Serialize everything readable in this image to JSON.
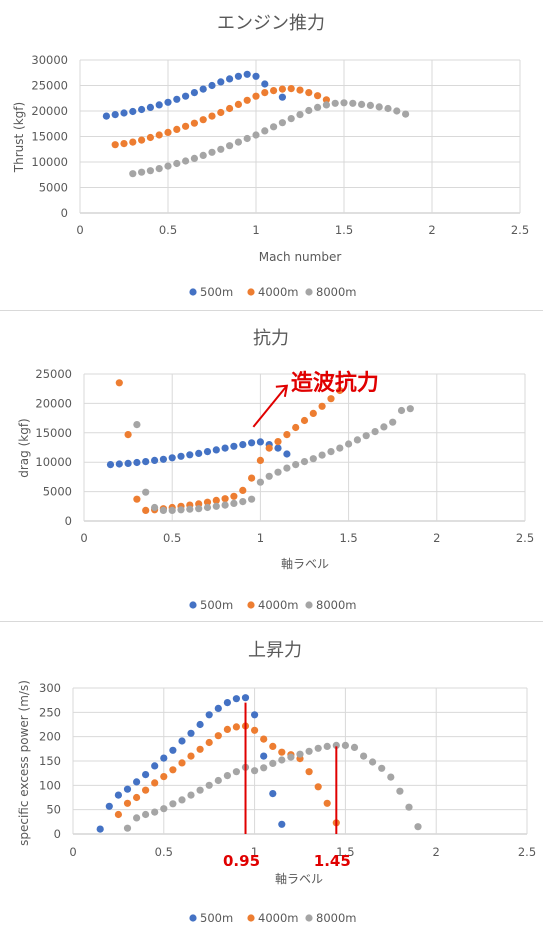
{
  "colors": {
    "500m": "#4472c4",
    "4000m": "#ed7d31",
    "8000m": "#a5a5a5",
    "annotation": "#e00000"
  },
  "chart_data": [
    {
      "type": "scatter",
      "title": "エンジン推力",
      "xlabel": "Mach number",
      "ylabel": "Thrust (kgf)",
      "xlim": [
        0,
        2.5
      ],
      "ylim": [
        0,
        30000
      ],
      "xticks": [
        0,
        0.5,
        1,
        1.5,
        2,
        2.5
      ],
      "yticks": [
        0,
        5000,
        10000,
        15000,
        20000,
        25000,
        30000
      ],
      "xtick_labels": [
        "0",
        "0.5",
        "1",
        "1.5",
        "2",
        "2.5"
      ],
      "ytick_labels": [
        "0",
        "5000",
        "10000",
        "15000",
        "20000",
        "25000",
        "30000"
      ],
      "legend_position": "bottom",
      "series": [
        {
          "name": "500m",
          "color": "#4472c4",
          "points": [
            [
              0.15,
              19000
            ],
            [
              0.2,
              19300
            ],
            [
              0.25,
              19600
            ],
            [
              0.3,
              19900
            ],
            [
              0.35,
              20300
            ],
            [
              0.4,
              20700
            ],
            [
              0.45,
              21200
            ],
            [
              0.5,
              21700
            ],
            [
              0.55,
              22300
            ],
            [
              0.6,
              22900
            ],
            [
              0.65,
              23600
            ],
            [
              0.7,
              24300
            ],
            [
              0.75,
              25000
            ],
            [
              0.8,
              25700
            ],
            [
              0.85,
              26300
            ],
            [
              0.9,
              26800
            ],
            [
              0.95,
              27200
            ],
            [
              1.0,
              26800
            ],
            [
              1.05,
              25300
            ],
            [
              1.15,
              22700
            ]
          ]
        },
        {
          "name": "4000m",
          "color": "#ed7d31",
          "points": [
            [
              0.2,
              13400
            ],
            [
              0.25,
              13600
            ],
            [
              0.3,
              13900
            ],
            [
              0.35,
              14300
            ],
            [
              0.4,
              14800
            ],
            [
              0.45,
              15300
            ],
            [
              0.5,
              15800
            ],
            [
              0.55,
              16400
            ],
            [
              0.6,
              17000
            ],
            [
              0.65,
              17600
            ],
            [
              0.7,
              18300
            ],
            [
              0.75,
              19000
            ],
            [
              0.8,
              19700
            ],
            [
              0.85,
              20500
            ],
            [
              0.9,
              21300
            ],
            [
              0.95,
              22100
            ],
            [
              1.0,
              22900
            ],
            [
              1.05,
              23600
            ],
            [
              1.1,
              24000
            ],
            [
              1.15,
              24300
            ],
            [
              1.2,
              24400
            ],
            [
              1.25,
              24100
            ],
            [
              1.3,
              23600
            ],
            [
              1.35,
              23000
            ],
            [
              1.4,
              22200
            ]
          ]
        },
        {
          "name": "8000m",
          "color": "#a5a5a5",
          "points": [
            [
              0.3,
              7700
            ],
            [
              0.35,
              8000
            ],
            [
              0.4,
              8300
            ],
            [
              0.45,
              8700
            ],
            [
              0.5,
              9200
            ],
            [
              0.55,
              9700
            ],
            [
              0.6,
              10200
            ],
            [
              0.65,
              10700
            ],
            [
              0.7,
              11300
            ],
            [
              0.75,
              11900
            ],
            [
              0.8,
              12500
            ],
            [
              0.85,
              13200
            ],
            [
              0.9,
              13900
            ],
            [
              0.95,
              14600
            ],
            [
              1.0,
              15300
            ],
            [
              1.05,
              16100
            ],
            [
              1.1,
              16900
            ],
            [
              1.15,
              17700
            ],
            [
              1.2,
              18500
            ],
            [
              1.25,
              19300
            ],
            [
              1.3,
              20100
            ],
            [
              1.35,
              20700
            ],
            [
              1.4,
              21200
            ],
            [
              1.45,
              21500
            ],
            [
              1.5,
              21600
            ],
            [
              1.55,
              21500
            ],
            [
              1.6,
              21300
            ],
            [
              1.65,
              21100
            ],
            [
              1.7,
              20800
            ],
            [
              1.75,
              20500
            ],
            [
              1.8,
              20000
            ],
            [
              1.85,
              19400
            ]
          ]
        }
      ]
    },
    {
      "type": "scatter",
      "title": "抗力",
      "xlabel": "軸ラベル",
      "ylabel": "drag (kgf)",
      "xlim": [
        0,
        2.5
      ],
      "ylim": [
        0,
        25000
      ],
      "xticks": [
        0,
        0.5,
        1,
        1.5,
        2,
        2.5
      ],
      "yticks": [
        0,
        5000,
        10000,
        15000,
        20000,
        25000
      ],
      "xtick_labels": [
        "0",
        "0.5",
        "1",
        "1.5",
        "2",
        "2.5"
      ],
      "ytick_labels": [
        "0",
        "5000",
        "10000",
        "15000",
        "20000",
        "25000"
      ],
      "legend_position": "bottom",
      "annotations": [
        {
          "text": "造波抗力",
          "arrow_from": [
            0.96,
            16000
          ],
          "arrow_to": [
            1.15,
            23000
          ]
        }
      ],
      "series": [
        {
          "name": "500m",
          "color": "#4472c4",
          "points": [
            [
              0.15,
              9600
            ],
            [
              0.2,
              9700
            ],
            [
              0.25,
              9800
            ],
            [
              0.3,
              9950
            ],
            [
              0.35,
              10100
            ],
            [
              0.4,
              10300
            ],
            [
              0.45,
              10500
            ],
            [
              0.5,
              10750
            ],
            [
              0.55,
              11000
            ],
            [
              0.6,
              11250
            ],
            [
              0.65,
              11500
            ],
            [
              0.7,
              11800
            ],
            [
              0.75,
              12100
            ],
            [
              0.8,
              12400
            ],
            [
              0.85,
              12700
            ],
            [
              0.9,
              13000
            ],
            [
              0.95,
              13300
            ],
            [
              1.0,
              13450
            ],
            [
              1.05,
              13000
            ],
            [
              1.1,
              12400
            ],
            [
              1.15,
              11400
            ]
          ]
        },
        {
          "name": "4000m",
          "color": "#ed7d31",
          "points": [
            [
              0.2,
              23500
            ],
            [
              0.25,
              14700
            ],
            [
              0.3,
              3700
            ],
            [
              0.35,
              1800
            ],
            [
              0.4,
              1900
            ],
            [
              0.45,
              2100
            ],
            [
              0.5,
              2300
            ],
            [
              0.55,
              2500
            ],
            [
              0.6,
              2700
            ],
            [
              0.65,
              2900
            ],
            [
              0.7,
              3200
            ],
            [
              0.75,
              3500
            ],
            [
              0.8,
              3800
            ],
            [
              0.85,
              4200
            ],
            [
              0.9,
              5200
            ],
            [
              0.95,
              7300
            ],
            [
              1.0,
              10300
            ],
            [
              1.05,
              12400
            ],
            [
              1.1,
              13500
            ],
            [
              1.15,
              14700
            ],
            [
              1.2,
              15900
            ],
            [
              1.25,
              17100
            ],
            [
              1.3,
              18300
            ],
            [
              1.35,
              19500
            ],
            [
              1.4,
              20800
            ],
            [
              1.45,
              22200
            ]
          ]
        },
        {
          "name": "8000m",
          "color": "#a5a5a5",
          "points": [
            [
              0.3,
              16400
            ],
            [
              0.35,
              4900
            ],
            [
              0.4,
              2300
            ],
            [
              0.45,
              1800
            ],
            [
              0.5,
              1800
            ],
            [
              0.55,
              1900
            ],
            [
              0.6,
              2000
            ],
            [
              0.65,
              2100
            ],
            [
              0.7,
              2300
            ],
            [
              0.75,
              2500
            ],
            [
              0.8,
              2700
            ],
            [
              0.85,
              3000
            ],
            [
              0.9,
              3300
            ],
            [
              0.95,
              3700
            ],
            [
              1.0,
              6600
            ],
            [
              1.05,
              7600
            ],
            [
              1.1,
              8300
            ],
            [
              1.15,
              9000
            ],
            [
              1.2,
              9600
            ],
            [
              1.25,
              10100
            ],
            [
              1.3,
              10600
            ],
            [
              1.35,
              11200
            ],
            [
              1.4,
              11800
            ],
            [
              1.45,
              12400
            ],
            [
              1.5,
              13100
            ],
            [
              1.55,
              13800
            ],
            [
              1.6,
              14500
            ],
            [
              1.65,
              15200
            ],
            [
              1.7,
              16000
            ],
            [
              1.75,
              16800
            ],
            [
              1.8,
              18800
            ],
            [
              1.85,
              19100
            ]
          ]
        }
      ]
    },
    {
      "type": "scatter",
      "title": "上昇力",
      "xlabel": "軸ラベル",
      "ylabel": "specific excess power (m/s)",
      "xlim": [
        0,
        2.5
      ],
      "ylim": [
        0,
        300
      ],
      "xticks": [
        0,
        0.5,
        1,
        1.5,
        2,
        2.5
      ],
      "yticks": [
        0,
        50,
        100,
        150,
        200,
        250,
        300
      ],
      "xtick_labels": [
        "0",
        "0.5",
        "1",
        "1.5",
        "2",
        "2.5"
      ],
      "ytick_labels": [
        "0",
        "50",
        "100",
        "150",
        "200",
        "250",
        "300"
      ],
      "legend_position": "bottom",
      "annotations": [
        {
          "text": "0.95",
          "line_x": 0.95,
          "line_y": [
            0,
            270
          ]
        },
        {
          "text": "1.45",
          "line_x": 1.45,
          "line_y": [
            0,
            180
          ]
        }
      ],
      "series": [
        {
          "name": "500m",
          "color": "#4472c4",
          "points": [
            [
              0.15,
              10
            ],
            [
              0.2,
              57
            ],
            [
              0.25,
              80
            ],
            [
              0.3,
              92
            ],
            [
              0.35,
              107
            ],
            [
              0.4,
              122
            ],
            [
              0.45,
              140
            ],
            [
              0.5,
              156
            ],
            [
              0.55,
              172
            ],
            [
              0.6,
              191
            ],
            [
              0.65,
              207
            ],
            [
              0.7,
              225
            ],
            [
              0.75,
              245
            ],
            [
              0.8,
              258
            ],
            [
              0.85,
              270
            ],
            [
              0.9,
              278
            ],
            [
              0.95,
              280
            ],
            [
              1.0,
              245
            ],
            [
              1.05,
              160
            ],
            [
              1.1,
              83
            ],
            [
              1.15,
              20
            ]
          ]
        },
        {
          "name": "4000m",
          "color": "#ed7d31",
          "points": [
            [
              0.25,
              40
            ],
            [
              0.3,
              63
            ],
            [
              0.35,
              75
            ],
            [
              0.4,
              90
            ],
            [
              0.45,
              105
            ],
            [
              0.5,
              118
            ],
            [
              0.55,
              132
            ],
            [
              0.6,
              146
            ],
            [
              0.65,
              160
            ],
            [
              0.7,
              174
            ],
            [
              0.75,
              188
            ],
            [
              0.8,
              202
            ],
            [
              0.85,
              215
            ],
            [
              0.9,
              220
            ],
            [
              0.95,
              222
            ],
            [
              1.0,
              213
            ],
            [
              1.05,
              195
            ],
            [
              1.1,
              180
            ],
            [
              1.15,
              168
            ],
            [
              1.2,
              163
            ],
            [
              1.25,
              155
            ],
            [
              1.3,
              128
            ],
            [
              1.35,
              97
            ],
            [
              1.4,
              63
            ],
            [
              1.45,
              23
            ]
          ]
        },
        {
          "name": "8000m",
          "color": "#a5a5a5",
          "points": [
            [
              0.3,
              12
            ],
            [
              0.35,
              33
            ],
            [
              0.4,
              40
            ],
            [
              0.45,
              45
            ],
            [
              0.5,
              52
            ],
            [
              0.55,
              62
            ],
            [
              0.6,
              70
            ],
            [
              0.65,
              80
            ],
            [
              0.7,
              90
            ],
            [
              0.75,
              100
            ],
            [
              0.8,
              110
            ],
            [
              0.85,
              120
            ],
            [
              0.9,
              128
            ],
            [
              0.95,
              137
            ],
            [
              1.0,
              130
            ],
            [
              1.05,
              136
            ],
            [
              1.1,
              145
            ],
            [
              1.15,
              152
            ],
            [
              1.2,
              158
            ],
            [
              1.25,
              164
            ],
            [
              1.3,
              170
            ],
            [
              1.35,
              176
            ],
            [
              1.4,
              180
            ],
            [
              1.45,
              182
            ],
            [
              1.5,
              182
            ],
            [
              1.55,
              178
            ],
            [
              1.6,
              160
            ],
            [
              1.65,
              148
            ],
            [
              1.7,
              135
            ],
            [
              1.75,
              117
            ],
            [
              1.8,
              88
            ],
            [
              1.85,
              55
            ],
            [
              1.9,
              15
            ]
          ]
        }
      ]
    }
  ]
}
